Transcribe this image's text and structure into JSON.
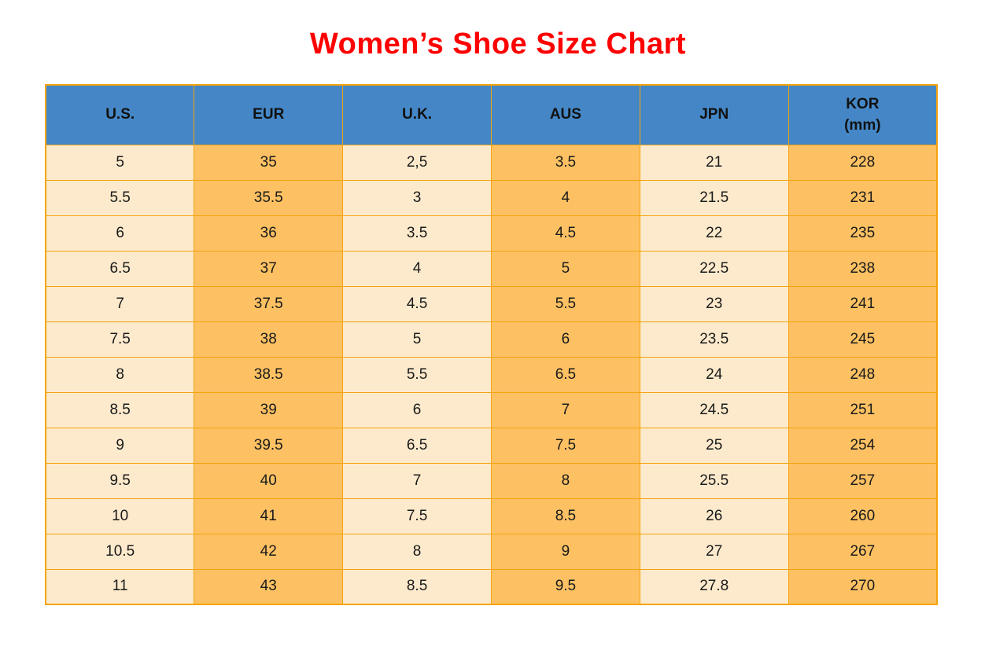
{
  "page": {
    "title": "Women’s Shoe Size Chart"
  },
  "colors": {
    "title": "#ff0000",
    "header_bg": "#4587c6",
    "header_text": "#111111",
    "cell_text": "#1a1a1a",
    "col_light": "#fdeacc",
    "col_dark": "#fdc163",
    "border": "#f3a40c"
  },
  "chart_data": {
    "type": "table",
    "title": "Women’s Shoe Size Chart",
    "legend_position": "none",
    "grid": true,
    "columns": [
      {
        "label": "U.S.",
        "shade": "light"
      },
      {
        "label": "EUR",
        "shade": "dark"
      },
      {
        "label": "U.K.",
        "shade": "light"
      },
      {
        "label": "AUS",
        "shade": "dark"
      },
      {
        "label": "JPN",
        "shade": "light"
      },
      {
        "label": "KOR",
        "sublabel": "(mm)",
        "shade": "dark"
      }
    ],
    "rows": [
      [
        "5",
        "35",
        "2,5",
        "3.5",
        "21",
        "228"
      ],
      [
        "5.5",
        "35.5",
        "3",
        "4",
        "21.5",
        "231"
      ],
      [
        "6",
        "36",
        "3.5",
        "4.5",
        "22",
        "235"
      ],
      [
        "6.5",
        "37",
        "4",
        "5",
        "22.5",
        "238"
      ],
      [
        "7",
        "37.5",
        "4.5",
        "5.5",
        "23",
        "241"
      ],
      [
        "7.5",
        "38",
        "5",
        "6",
        "23.5",
        "245"
      ],
      [
        "8",
        "38.5",
        "5.5",
        "6.5",
        "24",
        "248"
      ],
      [
        "8.5",
        "39",
        "6",
        "7",
        "24.5",
        "251"
      ],
      [
        "9",
        "39.5",
        "6.5",
        "7.5",
        "25",
        "254"
      ],
      [
        "9.5",
        "40",
        "7",
        "8",
        "25.5",
        "257"
      ],
      [
        "10",
        "41",
        "7.5",
        "8.5",
        "26",
        "260"
      ],
      [
        "10.5",
        "42",
        "8",
        "9",
        "27",
        "267"
      ],
      [
        "11",
        "43",
        "8.5",
        "9.5",
        "27.8",
        "270"
      ]
    ]
  }
}
